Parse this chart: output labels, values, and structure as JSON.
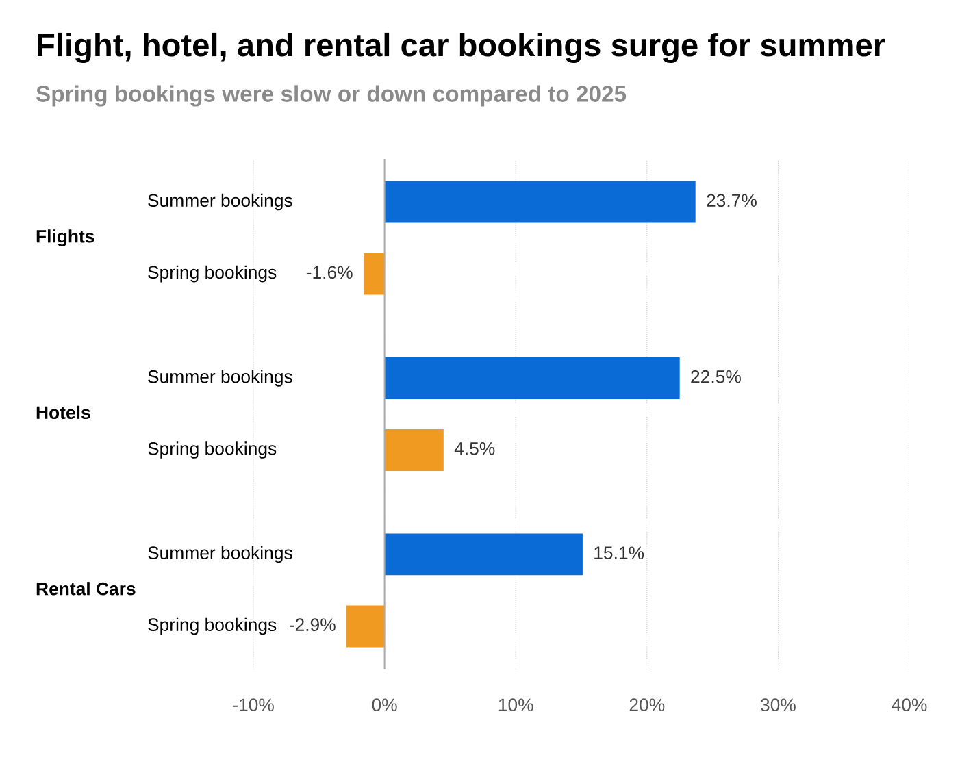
{
  "chart_data": {
    "type": "bar",
    "orientation": "horizontal",
    "title": "Flight, hotel, and rental car bookings surge for summer",
    "subtitle": "Spring bookings were slow or down compared to 2025",
    "categories": [
      "Summer bookings",
      "Spring bookings",
      "Summer bookings",
      "Spring bookings",
      "Summer bookings",
      "Spring bookings"
    ],
    "values": [
      23.7,
      -1.6,
      22.5,
      4.5,
      15.1,
      -2.9
    ],
    "colors": [
      "#0a6ad6",
      "#f09a22",
      "#0a6ad6",
      "#f09a22",
      "#0a6ad6",
      "#f09a22"
    ],
    "value_labels": [
      "23.7%",
      "-1.6%",
      "22.5%",
      "4.5%",
      "15.1%",
      "-2.9%"
    ],
    "annotations": [
      "Flights",
      "Hotels",
      "Rental Cars"
    ],
    "xlim": [
      -10,
      40
    ],
    "xticks": [
      {
        "value": -10,
        "label": "-10%"
      },
      {
        "value": 0,
        "label": "0%"
      },
      {
        "value": 10,
        "label": "10%"
      },
      {
        "value": 20,
        "label": "20%"
      },
      {
        "value": 30,
        "label": "30%"
      },
      {
        "value": 40,
        "label": "40%"
      }
    ],
    "grid": "x",
    "legend": false,
    "ref_lines": [
      {
        "axis": "x",
        "value": 0,
        "color": "#aaaaaa",
        "line_style": "solid"
      }
    ]
  }
}
